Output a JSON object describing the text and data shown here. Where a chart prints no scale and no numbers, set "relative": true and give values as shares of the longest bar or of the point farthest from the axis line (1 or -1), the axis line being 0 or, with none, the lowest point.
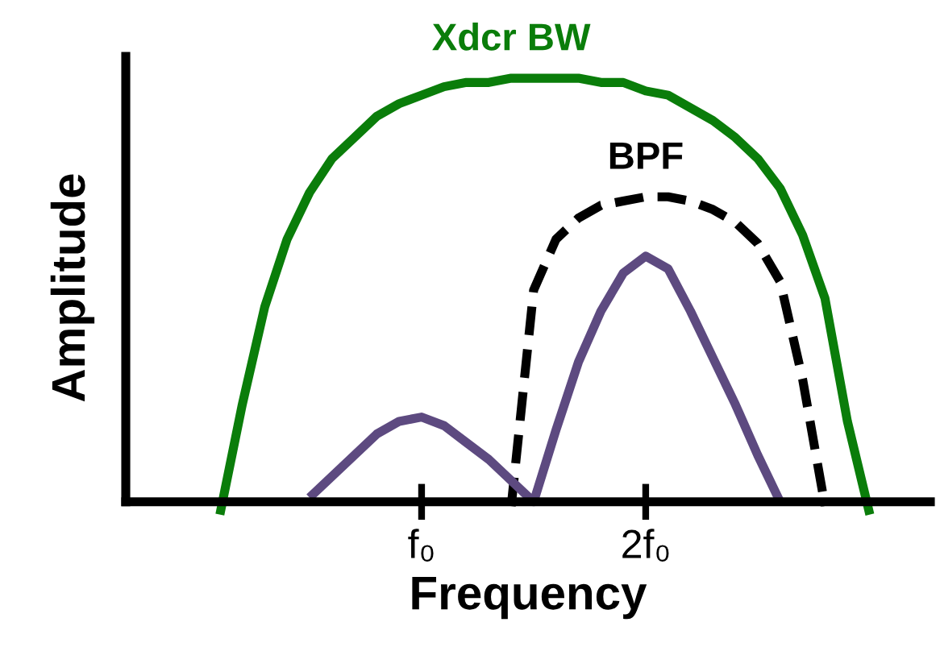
{
  "chart_data": {
    "type": "line",
    "relative": true,
    "xlabel": "Frequency",
    "ylabel": "Amplitude",
    "categories": [
      null,
      null,
      null,
      null,
      null,
      null,
      null,
      null,
      null,
      "f₀",
      null,
      null,
      null,
      null,
      null,
      null,
      null,
      null,
      null,
      "2f₀",
      null,
      null,
      null,
      null,
      null,
      null,
      null,
      null,
      null,
      null
    ],
    "tick_labels": "x",
    "series": [
      {
        "name": "Xdcr BW",
        "color": "#0a7d0a",
        "line_style": "solid",
        "values": [
          -0.03,
          0.23,
          0.46,
          0.62,
          0.73,
          0.81,
          0.86,
          0.91,
          0.94,
          0.96,
          0.98,
          0.99,
          0.99,
          1.0,
          1.0,
          1.0,
          1.0,
          0.99,
          0.99,
          0.97,
          0.96,
          0.93,
          0.9,
          0.86,
          0.81,
          0.74,
          0.63,
          0.48,
          0.19,
          -0.03
        ]
      },
      {
        "name": "BPF",
        "color": "#000000",
        "line_style": "dashed",
        "values": [
          null,
          null,
          null,
          null,
          null,
          null,
          null,
          null,
          null,
          null,
          null,
          null,
          null,
          -0.01,
          0.5,
          0.62,
          0.67,
          0.7,
          0.71,
          0.72,
          0.72,
          0.71,
          0.69,
          0.66,
          0.61,
          0.52,
          0.29,
          -0.01,
          null,
          null
        ]
      },
      {
        "color": "#5d4a80",
        "line_style": "solid",
        "values": [
          null,
          null,
          null,
          null,
          0.01,
          0.06,
          0.11,
          0.16,
          0.19,
          0.2,
          0.18,
          0.14,
          0.1,
          0.05,
          0.0,
          0.17,
          0.33,
          0.45,
          0.54,
          0.58,
          0.55,
          0.45,
          0.34,
          0.23,
          0.11,
          0.0,
          null,
          null,
          null,
          null
        ]
      }
    ]
  }
}
